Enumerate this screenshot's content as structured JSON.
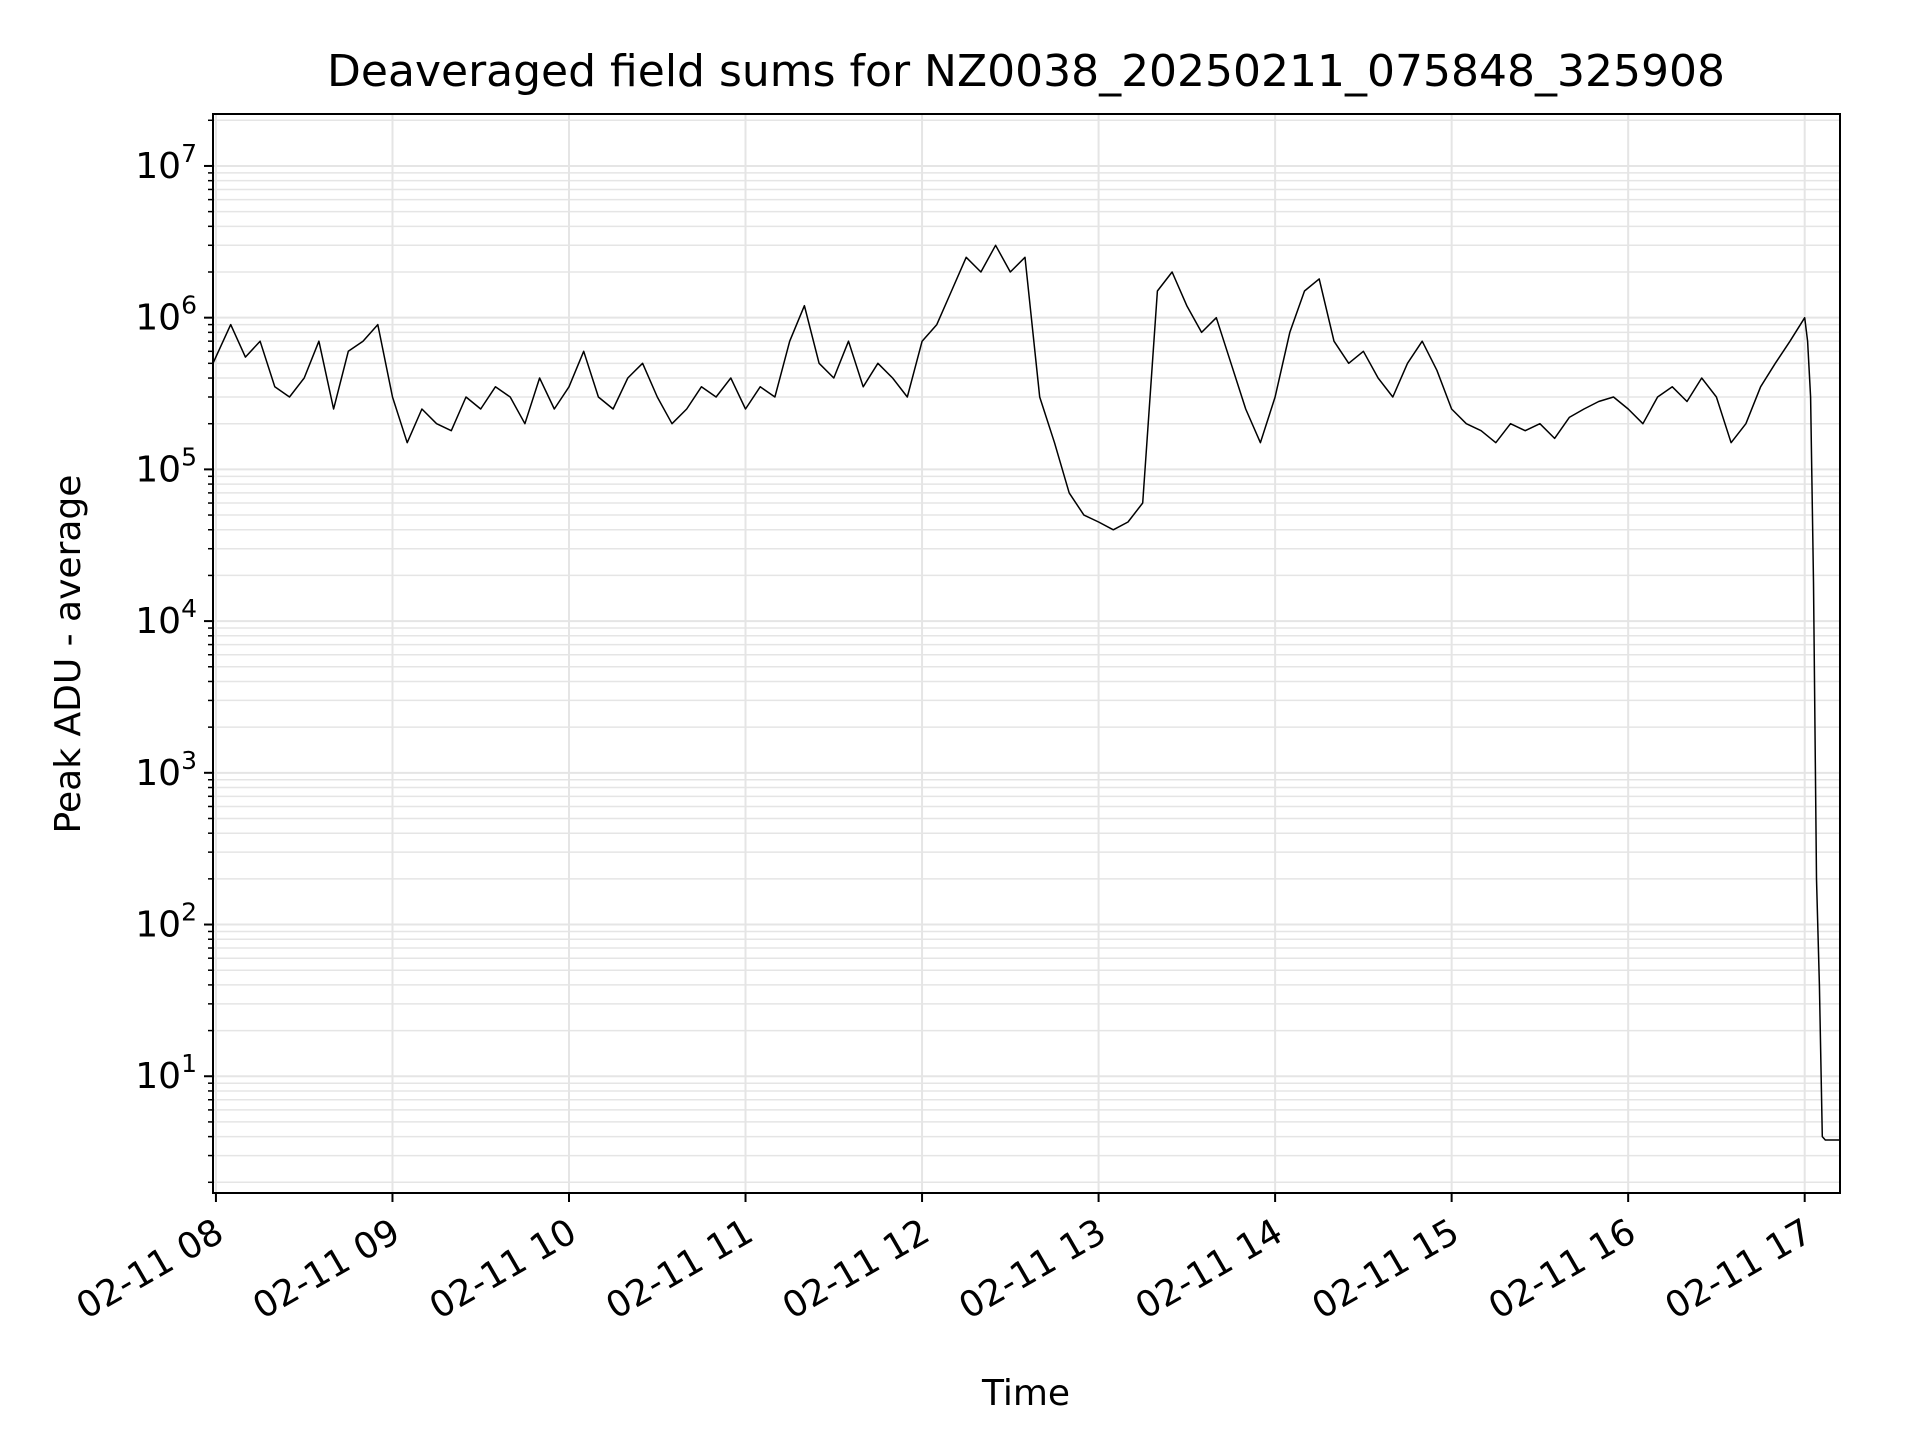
{
  "chart_data": {
    "type": "line",
    "title": "Deaveraged field sums for NZ0038_20250211_075848_325908",
    "xlabel": "Time",
    "ylabel": "Peak ADU - average",
    "yscale": "log",
    "xlim": [
      "2025-02-11 07:59",
      "2025-02-11 17:12"
    ],
    "ylim": [
      1.7,
      22000000
    ],
    "grid": true,
    "legend": "none",
    "line_color": "#000000",
    "grid_color": "#e5e5e5",
    "x_ticks": [
      {
        "value": "2025-02-11 08:00",
        "label": "02-11 08"
      },
      {
        "value": "2025-02-11 09:00",
        "label": "02-11 09"
      },
      {
        "value": "2025-02-11 10:00",
        "label": "02-11 10"
      },
      {
        "value": "2025-02-11 11:00",
        "label": "02-11 11"
      },
      {
        "value": "2025-02-11 12:00",
        "label": "02-11 12"
      },
      {
        "value": "2025-02-11 13:00",
        "label": "02-11 13"
      },
      {
        "value": "2025-02-11 14:00",
        "label": "02-11 14"
      },
      {
        "value": "2025-02-11 15:00",
        "label": "02-11 15"
      },
      {
        "value": "2025-02-11 16:00",
        "label": "02-11 16"
      },
      {
        "value": "2025-02-11 17:00",
        "label": "02-11 17"
      }
    ],
    "y_ticks": [
      {
        "value": 10,
        "base": "10",
        "exp": "1"
      },
      {
        "value": 100,
        "base": "10",
        "exp": "2"
      },
      {
        "value": 1000,
        "base": "10",
        "exp": "3"
      },
      {
        "value": 10000,
        "base": "10",
        "exp": "4"
      },
      {
        "value": 100000,
        "base": "10",
        "exp": "5"
      },
      {
        "value": 1000000,
        "base": "10",
        "exp": "6"
      },
      {
        "value": 10000000,
        "base": "10",
        "exp": "7"
      }
    ],
    "series": [
      {
        "x": [
          "2025-02-11 07:59",
          "2025-02-11 08:05",
          "2025-02-11 08:10",
          "2025-02-11 08:15",
          "2025-02-11 08:20",
          "2025-02-11 08:25",
          "2025-02-11 08:30",
          "2025-02-11 08:35",
          "2025-02-11 08:40",
          "2025-02-11 08:45",
          "2025-02-11 08:50",
          "2025-02-11 08:55",
          "2025-02-11 09:00",
          "2025-02-11 09:05",
          "2025-02-11 09:10",
          "2025-02-11 09:15",
          "2025-02-11 09:20",
          "2025-02-11 09:25",
          "2025-02-11 09:30",
          "2025-02-11 09:35",
          "2025-02-11 09:40",
          "2025-02-11 09:45",
          "2025-02-11 09:50",
          "2025-02-11 09:55",
          "2025-02-11 10:00",
          "2025-02-11 10:05",
          "2025-02-11 10:10",
          "2025-02-11 10:15",
          "2025-02-11 10:20",
          "2025-02-11 10:25",
          "2025-02-11 10:30",
          "2025-02-11 10:35",
          "2025-02-11 10:40",
          "2025-02-11 10:45",
          "2025-02-11 10:50",
          "2025-02-11 10:55",
          "2025-02-11 11:00",
          "2025-02-11 11:05",
          "2025-02-11 11:10",
          "2025-02-11 11:15",
          "2025-02-11 11:20",
          "2025-02-11 11:25",
          "2025-02-11 11:30",
          "2025-02-11 11:35",
          "2025-02-11 11:40",
          "2025-02-11 11:45",
          "2025-02-11 11:50",
          "2025-02-11 11:55",
          "2025-02-11 12:00",
          "2025-02-11 12:05",
          "2025-02-11 12:10",
          "2025-02-11 12:15",
          "2025-02-11 12:20",
          "2025-02-11 12:25",
          "2025-02-11 12:30",
          "2025-02-11 12:35",
          "2025-02-11 12:40",
          "2025-02-11 12:45",
          "2025-02-11 12:50",
          "2025-02-11 12:55",
          "2025-02-11 13:00",
          "2025-02-11 13:05",
          "2025-02-11 13:10",
          "2025-02-11 13:15",
          "2025-02-11 13:20",
          "2025-02-11 13:25",
          "2025-02-11 13:30",
          "2025-02-11 13:35",
          "2025-02-11 13:40",
          "2025-02-11 13:45",
          "2025-02-11 13:50",
          "2025-02-11 13:55",
          "2025-02-11 14:00",
          "2025-02-11 14:05",
          "2025-02-11 14:10",
          "2025-02-11 14:15",
          "2025-02-11 14:20",
          "2025-02-11 14:25",
          "2025-02-11 14:30",
          "2025-02-11 14:35",
          "2025-02-11 14:40",
          "2025-02-11 14:45",
          "2025-02-11 14:50",
          "2025-02-11 14:55",
          "2025-02-11 15:00",
          "2025-02-11 15:05",
          "2025-02-11 15:10",
          "2025-02-11 15:15",
          "2025-02-11 15:20",
          "2025-02-11 15:25",
          "2025-02-11 15:30",
          "2025-02-11 15:35",
          "2025-02-11 15:40",
          "2025-02-11 15:45",
          "2025-02-11 15:50",
          "2025-02-11 15:55",
          "2025-02-11 16:00",
          "2025-02-11 16:05",
          "2025-02-11 16:10",
          "2025-02-11 16:15",
          "2025-02-11 16:20",
          "2025-02-11 16:25",
          "2025-02-11 16:30",
          "2025-02-11 16:35",
          "2025-02-11 16:40",
          "2025-02-11 16:45",
          "2025-02-11 16:50",
          "2025-02-11 16:55",
          "2025-02-11 17:00",
          "2025-02-11 17:01",
          "2025-02-11 17:02",
          "2025-02-11 17:03",
          "2025-02-11 17:04",
          "2025-02-11 17:05",
          "2025-02-11 17:06",
          "2025-02-11 17:07",
          "2025-02-11 17:12"
        ],
        "y": [
          500000,
          900000,
          550000,
          700000,
          350000,
          300000,
          400000,
          700000,
          250000,
          600000,
          700000,
          900000,
          300000,
          150000,
          250000,
          200000,
          180000,
          300000,
          250000,
          350000,
          300000,
          200000,
          400000,
          250000,
          350000,
          600000,
          300000,
          250000,
          400000,
          500000,
          300000,
          200000,
          250000,
          350000,
          300000,
          400000,
          250000,
          350000,
          300000,
          700000,
          1200000,
          500000,
          400000,
          700000,
          350000,
          500000,
          400000,
          300000,
          700000,
          900000,
          1500000,
          2500000,
          2000000,
          3000000,
          2000000,
          2500000,
          300000,
          150000,
          70000,
          50000,
          45000,
          40000,
          45000,
          60000,
          1500000,
          2000000,
          1200000,
          800000,
          1000000,
          500000,
          250000,
          150000,
          300000,
          800000,
          1500000,
          1800000,
          700000,
          500000,
          600000,
          400000,
          300000,
          500000,
          700000,
          450000,
          250000,
          200000,
          180000,
          150000,
          200000,
          180000,
          200000,
          160000,
          220000,
          250000,
          280000,
          300000,
          250000,
          200000,
          300000,
          350000,
          280000,
          400000,
          300000,
          150000,
          200000,
          350000,
          500000,
          700000,
          1000000,
          700000,
          300000,
          18000,
          200,
          40,
          4,
          3.8,
          3.8
        ]
      }
    ]
  }
}
